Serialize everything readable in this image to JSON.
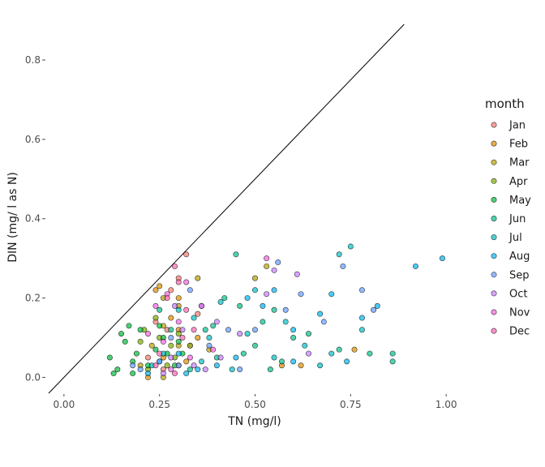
{
  "chart_data": {
    "type": "scatter",
    "title": "",
    "xlabel": "TN (mg/l)",
    "ylabel": "DIN (mg/ l as N)",
    "xlim": [
      -0.04,
      1.04
    ],
    "ylim": [
      -0.04,
      0.89
    ],
    "x_ticks": [
      0.0,
      0.25,
      0.5,
      0.75,
      1.0
    ],
    "x_tick_labels": [
      "0.00",
      "0.25",
      "0.50",
      "0.75",
      "1.00"
    ],
    "y_ticks": [
      0.0,
      0.2,
      0.4,
      0.6,
      0.8
    ],
    "y_tick_labels": [
      "0.0",
      "0.2",
      "0.4",
      "0.6",
      "0.8"
    ],
    "grid": false,
    "reference_line": {
      "slope": 1,
      "intercept": 0
    },
    "legend": {
      "title": "month",
      "placement": "right",
      "entries": [
        "Jan",
        "Feb",
        "Mar",
        "Apr",
        "May",
        "Jun",
        "Jul",
        "Aug",
        "Sep",
        "Oct",
        "Nov",
        "Dec"
      ]
    },
    "series": [
      {
        "name": "Jan",
        "color": "#F8766D",
        "points": [
          [
            0.28,
            0.22
          ],
          [
            0.3,
            0.25
          ],
          [
            0.32,
            0.31
          ],
          [
            0.24,
            0.14
          ],
          [
            0.27,
            0.12
          ],
          [
            0.22,
            0.05
          ],
          [
            0.3,
            0.03
          ],
          [
            0.35,
            0.16
          ],
          [
            0.26,
            0.02
          ],
          [
            0.33,
            0.08
          ]
        ]
      },
      {
        "name": "Feb",
        "color": "#DE8C00",
        "points": [
          [
            0.24,
            0.22
          ],
          [
            0.25,
            0.23
          ],
          [
            0.3,
            0.2
          ],
          [
            0.3,
            0.12
          ],
          [
            0.26,
            0.05
          ],
          [
            0.22,
            0.0
          ],
          [
            0.57,
            0.03
          ],
          [
            0.62,
            0.03
          ],
          [
            0.76,
            0.07
          ],
          [
            0.35,
            0.1
          ],
          [
            0.28,
            0.15
          ],
          [
            0.32,
            0.04
          ]
        ]
      },
      {
        "name": "Mar",
        "color": "#B79F00",
        "points": [
          [
            0.26,
            0.2
          ],
          [
            0.3,
            0.18
          ],
          [
            0.35,
            0.25
          ],
          [
            0.26,
            0.13
          ],
          [
            0.23,
            0.08
          ],
          [
            0.38,
            0.07
          ],
          [
            0.53,
            0.28
          ],
          [
            0.5,
            0.25
          ],
          [
            0.3,
            0.08
          ],
          [
            0.2,
            0.03
          ],
          [
            0.26,
            0.0
          ]
        ]
      },
      {
        "name": "Apr",
        "color": "#7CAE00",
        "points": [
          [
            0.24,
            0.15
          ],
          [
            0.25,
            0.1
          ],
          [
            0.28,
            0.08
          ],
          [
            0.2,
            0.09
          ],
          [
            0.27,
            0.03
          ],
          [
            0.21,
            0.12
          ],
          [
            0.33,
            0.08
          ],
          [
            0.29,
            0.05
          ],
          [
            0.22,
            0.02
          ],
          [
            0.3,
            0.11
          ]
        ]
      },
      {
        "name": "May",
        "color": "#00BA38",
        "points": [
          [
            0.12,
            0.05
          ],
          [
            0.15,
            0.11
          ],
          [
            0.17,
            0.13
          ],
          [
            0.16,
            0.09
          ],
          [
            0.18,
            0.04
          ],
          [
            0.14,
            0.02
          ],
          [
            0.19,
            0.06
          ],
          [
            0.2,
            0.12
          ],
          [
            0.22,
            0.03
          ],
          [
            0.24,
            0.07
          ],
          [
            0.25,
            0.13
          ],
          [
            0.26,
            0.1
          ],
          [
            0.27,
            0.06
          ],
          [
            0.29,
            0.03
          ],
          [
            0.18,
            0.01
          ],
          [
            0.13,
            0.01
          ],
          [
            0.3,
            0.09
          ],
          [
            0.31,
            0.06
          ]
        ]
      },
      {
        "name": "Jun",
        "color": "#00C08B",
        "points": [
          [
            0.45,
            0.31
          ],
          [
            0.42,
            0.2
          ],
          [
            0.46,
            0.18
          ],
          [
            0.5,
            0.08
          ],
          [
            0.55,
            0.17
          ],
          [
            0.6,
            0.1
          ],
          [
            0.37,
            0.12
          ],
          [
            0.33,
            0.02
          ],
          [
            0.4,
            0.05
          ],
          [
            0.54,
            0.02
          ],
          [
            0.8,
            0.06
          ],
          [
            0.86,
            0.06
          ],
          [
            0.86,
            0.04
          ],
          [
            0.72,
            0.07
          ],
          [
            0.64,
            0.11
          ],
          [
            0.47,
            0.06
          ],
          [
            0.39,
            0.13
          ],
          [
            0.25,
            0.17
          ],
          [
            0.28,
            0.12
          ],
          [
            0.52,
            0.14
          ],
          [
            0.57,
            0.04
          ]
        ]
      },
      {
        "name": "Jul",
        "color": "#00BFC4",
        "points": [
          [
            0.72,
            0.31
          ],
          [
            0.75,
            0.33
          ],
          [
            0.41,
            0.19
          ],
          [
            0.5,
            0.22
          ],
          [
            0.55,
            0.05
          ],
          [
            0.63,
            0.08
          ],
          [
            0.7,
            0.06
          ],
          [
            0.38,
            0.1
          ],
          [
            0.44,
            0.02
          ],
          [
            0.34,
            0.15
          ],
          [
            0.26,
            0.06
          ],
          [
            0.36,
            0.04
          ],
          [
            0.58,
            0.14
          ],
          [
            0.78,
            0.12
          ],
          [
            0.67,
            0.03
          ],
          [
            0.23,
            0.03
          ],
          [
            0.3,
            0.17
          ],
          [
            0.48,
            0.11
          ]
        ]
      },
      {
        "name": "Aug",
        "color": "#00B4F0",
        "points": [
          [
            0.99,
            0.3
          ],
          [
            0.92,
            0.28
          ],
          [
            0.7,
            0.21
          ],
          [
            0.55,
            0.22
          ],
          [
            0.52,
            0.18
          ],
          [
            0.45,
            0.05
          ],
          [
            0.6,
            0.12
          ],
          [
            0.4,
            0.03
          ],
          [
            0.3,
            0.06
          ],
          [
            0.35,
            0.02
          ],
          [
            0.78,
            0.15
          ],
          [
            0.74,
            0.04
          ],
          [
            0.6,
            0.04
          ],
          [
            0.82,
            0.18
          ],
          [
            0.48,
            0.2
          ],
          [
            0.32,
            0.01
          ],
          [
            0.22,
            0.01
          ],
          [
            0.25,
            0.04
          ],
          [
            0.67,
            0.16
          ]
        ]
      },
      {
        "name": "Sep",
        "color": "#619CFF",
        "points": [
          [
            0.73,
            0.28
          ],
          [
            0.78,
            0.22
          ],
          [
            0.62,
            0.21
          ],
          [
            0.58,
            0.17
          ],
          [
            0.5,
            0.12
          ],
          [
            0.43,
            0.12
          ],
          [
            0.38,
            0.08
          ],
          [
            0.33,
            0.22
          ],
          [
            0.28,
            0.1
          ],
          [
            0.25,
            0.04
          ],
          [
            0.2,
            0.02
          ],
          [
            0.46,
            0.02
          ],
          [
            0.68,
            0.14
          ],
          [
            0.81,
            0.17
          ],
          [
            0.56,
            0.29
          ],
          [
            0.36,
            0.18
          ],
          [
            0.3,
            0.03
          ],
          [
            0.18,
            0.03
          ]
        ]
      },
      {
        "name": "Oct",
        "color": "#C77CFF",
        "points": [
          [
            0.55,
            0.27
          ],
          [
            0.61,
            0.26
          ],
          [
            0.46,
            0.11
          ],
          [
            0.41,
            0.05
          ],
          [
            0.34,
            0.03
          ],
          [
            0.4,
            0.14
          ],
          [
            0.29,
            0.18
          ],
          [
            0.26,
            0.01
          ],
          [
            0.31,
            0.12
          ],
          [
            0.37,
            0.02
          ],
          [
            0.64,
            0.06
          ],
          [
            0.53,
            0.21
          ],
          [
            0.28,
            0.05
          ]
        ]
      },
      {
        "name": "Nov",
        "color": "#F564E3",
        "points": [
          [
            0.27,
            0.21
          ],
          [
            0.24,
            0.18
          ],
          [
            0.53,
            0.3
          ],
          [
            0.32,
            0.24
          ],
          [
            0.3,
            0.14
          ],
          [
            0.26,
            0.09
          ],
          [
            0.36,
            0.18
          ],
          [
            0.22,
            0.11
          ],
          [
            0.39,
            0.07
          ],
          [
            0.28,
            0.02
          ],
          [
            0.33,
            0.05
          ]
        ]
      },
      {
        "name": "Dec",
        "color": "#FF64B0",
        "points": [
          [
            0.29,
            0.28
          ],
          [
            0.3,
            0.24
          ],
          [
            0.27,
            0.2
          ],
          [
            0.31,
            0.1
          ],
          [
            0.25,
            0.06
          ],
          [
            0.29,
            0.01
          ],
          [
            0.34,
            0.12
          ],
          [
            0.24,
            0.03
          ],
          [
            0.32,
            0.17
          ]
        ]
      }
    ]
  }
}
